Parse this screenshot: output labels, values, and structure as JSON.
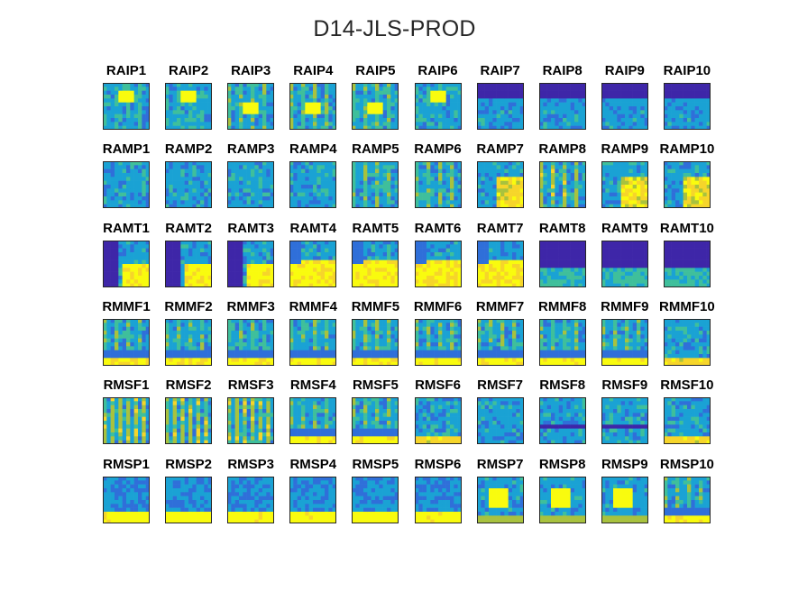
{
  "title": "D14-JLS-PROD",
  "chart_data": {
    "type": "heatmap",
    "title": "D14-JLS-PROD",
    "colormap": [
      "#3e26a8",
      "#2f6fd9",
      "#1aa2d4",
      "#3fbf9b",
      "#a8c23e",
      "#f6d52a",
      "#f9fb0e"
    ],
    "rows": [
      {
        "group": "RAIP",
        "panels": [
          "RAIP1",
          "RAIP2",
          "RAIP3",
          "RAIP4",
          "RAIP5",
          "RAIP6",
          "RAIP7",
          "RAIP8",
          "RAIP9",
          "RAIP10"
        ],
        "pattern": [
          "blob-top",
          "blob-top",
          "blob-mid",
          "blob-mid",
          "blob-mid",
          "blob-top",
          "dark-top",
          "dark-top",
          "dark-top",
          "dark-top"
        ]
      },
      {
        "group": "RAMP",
        "panels": [
          "RAMP1",
          "RAMP2",
          "RAMP3",
          "RAMP4",
          "RAMP5",
          "RAMP6",
          "RAMP7",
          "RAMP8",
          "RAMP9",
          "RAMP10"
        ],
        "pattern": [
          "plain",
          "plain",
          "plain",
          "plain",
          "streaks",
          "streaks",
          "yellow-right",
          "yellow-streaks",
          "yellow-right",
          "yellow-right"
        ]
      },
      {
        "group": "RAMT",
        "panels": [
          "RAMT1",
          "RAMT2",
          "RAMT3",
          "RAMT4",
          "RAMT5",
          "RAMT6",
          "RAMT7",
          "RAMT8",
          "RAMT9",
          "RAMT10"
        ],
        "pattern": [
          "dark-left",
          "dark-left",
          "dark-left",
          "yellow-bottom",
          "yellow-bottom",
          "yellow-bottom",
          "yellow-bottom",
          "dark-top-heavy",
          "dark-top-heavy",
          "dark-top-heavy"
        ]
      },
      {
        "group": "RMMF",
        "panels": [
          "RMMF1",
          "RMMF2",
          "RMMF3",
          "RMMF4",
          "RMMF5",
          "RMMF6",
          "RMMF7",
          "RMMF8",
          "RMMF9",
          "RMMF10"
        ],
        "pattern": [
          "streaks-floor",
          "streaks-floor",
          "streaks-floor",
          "streaks-floor",
          "streaks-floor",
          "streaks-floor",
          "streaks-floor",
          "streaks-floor",
          "streaks-floor",
          "plain-floor"
        ]
      },
      {
        "group": "RMSF",
        "panels": [
          "RMSF1",
          "RMSF2",
          "RMSF3",
          "RMSF4",
          "RMSF5",
          "RMSF6",
          "RMSF7",
          "RMSF8",
          "RMSF9",
          "RMSF10"
        ],
        "pattern": [
          "dense-streaks",
          "dense-streaks",
          "dense-streaks",
          "streaks-floor",
          "streaks-floor",
          "plain-floor",
          "plain",
          "dark-band",
          "dark-band",
          "plain-floor"
        ]
      },
      {
        "group": "RMSP",
        "panels": [
          "RMSP1",
          "RMSP2",
          "RMSP3",
          "RMSP4",
          "RMSP5",
          "RMSP6",
          "RMSP7",
          "RMSP8",
          "RMSP9",
          "RMSP10"
        ],
        "pattern": [
          "yellow-floor",
          "yellow-floor",
          "yellow-floor",
          "yellow-floor",
          "yellow-floor",
          "yellow-floor",
          "blob-big",
          "blob-big",
          "blob-big",
          "streaks-floor"
        ]
      }
    ]
  }
}
